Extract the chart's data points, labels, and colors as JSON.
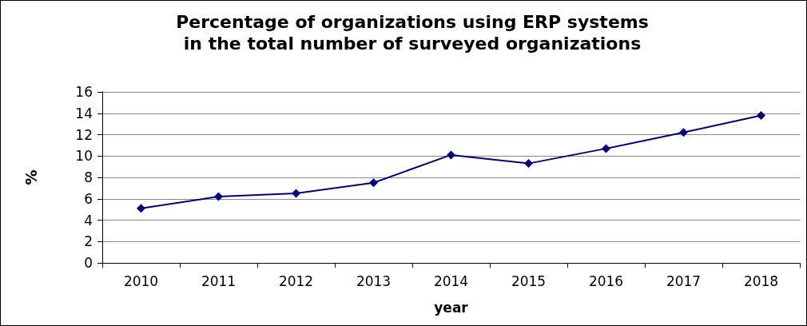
{
  "chart_data": {
    "type": "line",
    "title": "Percentage of organizations using ERP systems\nin the total number of surveyed organizations",
    "xlabel": "year",
    "ylabel": "%",
    "categories": [
      "2010",
      "2011",
      "2012",
      "2013",
      "2014",
      "2015",
      "2016",
      "2017",
      "2018"
    ],
    "series": [
      {
        "color": "#000080",
        "values": [
          5.1,
          6.2,
          6.5,
          7.5,
          10.1,
          9.3,
          10.7,
          12.2,
          13.8
        ]
      }
    ],
    "ylim": [
      0,
      16
    ],
    "yticks": [
      0,
      2,
      4,
      6,
      8,
      10,
      12,
      14,
      16
    ],
    "grid": "y",
    "marker": "diamond",
    "line_style": "solid"
  }
}
